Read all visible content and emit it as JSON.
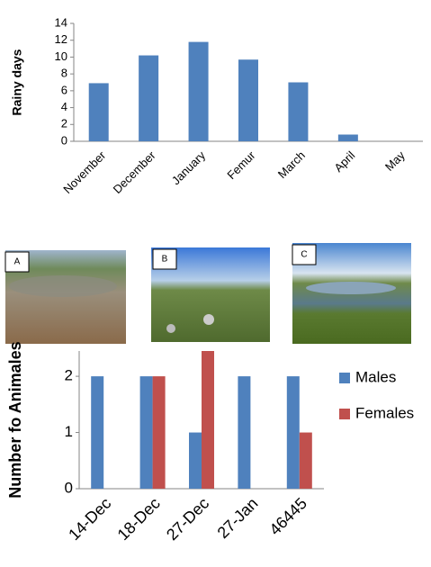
{
  "chart_data": [
    {
      "type": "bar",
      "y_label": "Rainy days",
      "categories": [
        "November",
        "December",
        "January",
        "Femur",
        "March",
        "April",
        "May"
      ],
      "values": [
        6.9,
        10.2,
        11.8,
        9.7,
        7.0,
        0.8,
        0
      ],
      "color": "#4f81bd",
      "ylim": [
        0,
        14
      ],
      "yticks": [
        0,
        2,
        4,
        6,
        8,
        10,
        12,
        14
      ],
      "grid": false
    },
    {
      "type": "grouped_bar",
      "y_label": "Number fo Animales",
      "categories": [
        "14-Dec",
        "18-Dec",
        "27-Dec",
        "27-Jan",
        "46445"
      ],
      "series": [
        {
          "name": "Males",
          "color": "#4f81bd",
          "values": [
            2,
            2,
            1,
            2,
            2
          ]
        },
        {
          "name": "Females",
          "color": "#c0504d",
          "values": [
            0,
            2,
            2.45,
            0,
            1
          ]
        }
      ],
      "ylim": [
        0,
        2.45
      ],
      "yticks": [
        0,
        1,
        2
      ],
      "grid": false,
      "legend": "right"
    }
  ],
  "panels": {
    "labels": [
      "A",
      "B",
      "C"
    ]
  }
}
